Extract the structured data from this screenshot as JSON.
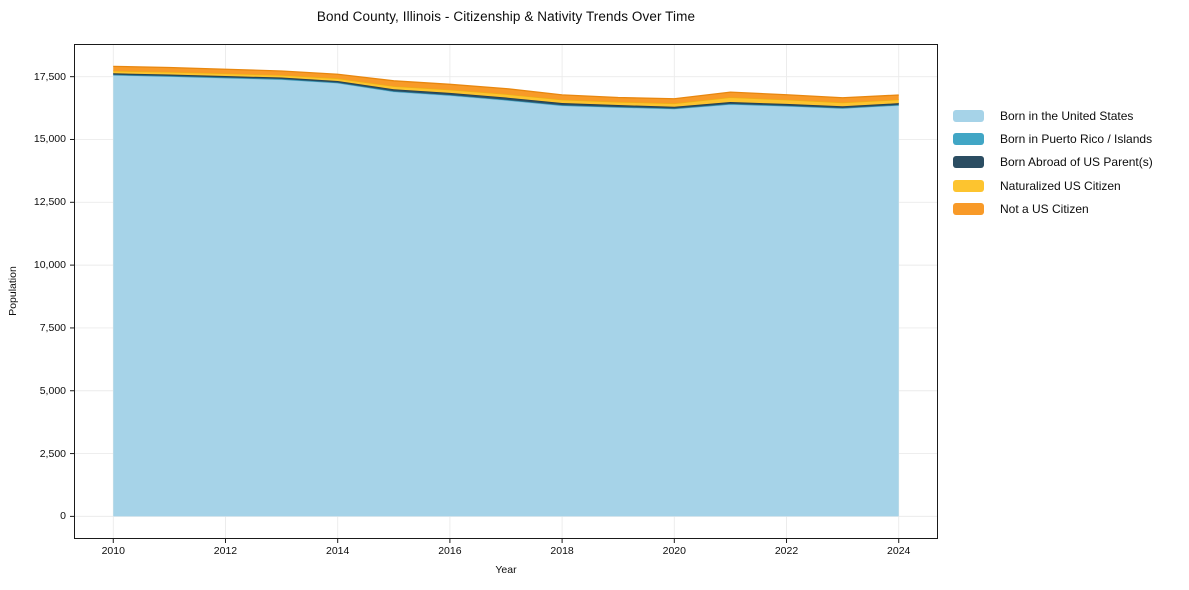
{
  "figure": {
    "title": "Bond County, Illinois - Citizenship & Nativity Trends Over Time",
    "x_axis_label": "Year",
    "y_axis_label": "Population"
  },
  "chart_data": {
    "type": "area",
    "stacked": true,
    "title": "Bond County, Illinois - Citizenship & Nativity Trends Over Time",
    "xlabel": "Year",
    "ylabel": "Population",
    "grid": true,
    "legend_position": "right-outside",
    "x": [
      2010,
      2011,
      2012,
      2013,
      2014,
      2015,
      2016,
      2017,
      2018,
      2019,
      2020,
      2021,
      2022,
      2023,
      2024
    ],
    "x_ticks": [
      2010,
      2012,
      2014,
      2016,
      2018,
      2020,
      2022,
      2024
    ],
    "x_tick_labels": [
      "2010",
      "2012",
      "2014",
      "2016",
      "2018",
      "2020",
      "2022",
      "2024"
    ],
    "y_ticks": [
      0,
      2500,
      5000,
      7500,
      10000,
      12500,
      15000,
      17500
    ],
    "y_tick_labels": [
      "0",
      "2,500",
      "5,000",
      "7,500",
      "10,000",
      "12,500",
      "15,000",
      "17,500"
    ],
    "xlim": [
      2009.3,
      2024.7
    ],
    "ylim": [
      -900,
      18800
    ],
    "axis_color": "#1a1a1a",
    "grid_color": "#ebebeb",
    "series": [
      {
        "name": "Born in the United States",
        "color": "#a6d3e8",
        "edge_color": "#8cc2dc",
        "values": [
          17560,
          17510,
          17450,
          17390,
          17250,
          16900,
          16750,
          16560,
          16350,
          16280,
          16220,
          16400,
          16330,
          16240,
          16360
        ]
      },
      {
        "name": "Born in Puerto Rico / Islands",
        "color": "#41a6c5",
        "edge_color": "#3391b0",
        "values": [
          15,
          15,
          15,
          15,
          15,
          20,
          20,
          20,
          15,
          15,
          15,
          15,
          15,
          15,
          15
        ]
      },
      {
        "name": "Born Abroad of US Parent(s)",
        "color": "#2b4d62",
        "edge_color": "#223d4e",
        "values": [
          60,
          60,
          60,
          60,
          65,
          80,
          85,
          90,
          85,
          75,
          70,
          75,
          70,
          70,
          70
        ]
      },
      {
        "name": "Naturalized US Citizen",
        "color": "#fdc42f",
        "edge_color": "#edb112",
        "values": [
          95,
          100,
          100,
          95,
          100,
          120,
          125,
          135,
          130,
          125,
          130,
          185,
          165,
          145,
          140
        ]
      },
      {
        "name": "Not a US Citizen",
        "color": "#f89a28",
        "edge_color": "#e8870f",
        "values": [
          180,
          180,
          170,
          165,
          165,
          215,
          215,
          220,
          195,
          175,
          185,
          210,
          200,
          190,
          185
        ]
      }
    ]
  }
}
